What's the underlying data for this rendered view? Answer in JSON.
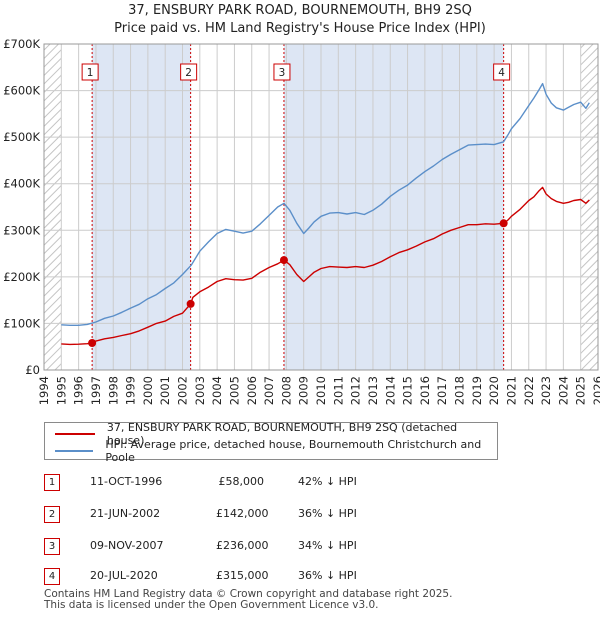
{
  "title_line1": "37, ENSBURY PARK ROAD, BOURNEMOUTH, BH9 2SQ",
  "title_line2": "Price paid vs. HM Land Registry's House Price Index (HPI)",
  "legend": {
    "property_label": "37, ENSBURY PARK ROAD, BOURNEMOUTH, BH9 2SQ (detached house)",
    "hpi_label": "HPI: Average price, detached house, Bournemouth Christchurch and Poole"
  },
  "sales": [
    {
      "num": "1",
      "date": "11-OCT-1996",
      "price": "£58,000",
      "hpi": "42% ↓ HPI"
    },
    {
      "num": "2",
      "date": "21-JUN-2002",
      "price": "£142,000",
      "hpi": "36% ↓ HPI"
    },
    {
      "num": "3",
      "date": "09-NOV-2007",
      "price": "£236,000",
      "hpi": "34% ↓ HPI"
    },
    {
      "num": "4",
      "date": "20-JUL-2020",
      "price": "£315,000",
      "hpi": "36% ↓ HPI"
    }
  ],
  "footer_line1": "Contains HM Land Registry data © Crown copyright and database right 2025.",
  "footer_line2": "This data is licensed under the Open Government Licence v3.0.",
  "chart_data": {
    "type": "line",
    "title": "37, ENSBURY PARK ROAD, BOURNEMOUTH, BH9 2SQ — Price paid vs. HM Land Registry's House Price Index (HPI)",
    "xlabel": "",
    "ylabel": "",
    "xlim": [
      1994,
      2026
    ],
    "ylim": [
      0,
      700000
    ],
    "x_ticks": [
      1994,
      1995,
      1996,
      1997,
      1998,
      1999,
      2000,
      2001,
      2002,
      2003,
      2004,
      2005,
      2006,
      2007,
      2008,
      2009,
      2010,
      2011,
      2012,
      2013,
      2014,
      2015,
      2016,
      2017,
      2018,
      2019,
      2020,
      2021,
      2022,
      2023,
      2024,
      2025,
      2026
    ],
    "y_ticks": [
      0,
      100000,
      200000,
      300000,
      400000,
      500000,
      600000,
      700000
    ],
    "y_tick_labels": [
      "£0",
      "£100K",
      "£200K",
      "£300K",
      "£400K",
      "£500K",
      "£600K",
      "£700K"
    ],
    "grid": true,
    "legend_position": "below",
    "colors": {
      "property": "#cc0000",
      "hpi": "#5b8fc9",
      "band": "#dde6f4",
      "vline": "#cc0000",
      "grid": "#cccccc"
    },
    "shaded_periods": [
      [
        1994,
        1995
      ],
      [
        1996.78,
        2002.47
      ],
      [
        2007.86,
        2020.55
      ],
      [
        2025.0,
        2026
      ]
    ],
    "hatched_periods": [
      [
        1994,
        1995
      ],
      [
        2025.0,
        2026
      ]
    ],
    "series": [
      {
        "name": "37, ENSBURY PARK ROAD, BOURNEMOUTH, BH9 2SQ (detached house)",
        "x": [
          1995.0,
          1995.5,
          1996.0,
          1996.5,
          1996.78,
          1997.0,
          1997.5,
          1998.0,
          1998.5,
          1999.0,
          1999.5,
          2000.0,
          2000.5,
          2001.0,
          2001.5,
          2002.0,
          2002.47,
          2002.6,
          2003.0,
          2003.5,
          2004.0,
          2004.5,
          2005.0,
          2005.5,
          2006.0,
          2006.5,
          2007.0,
          2007.5,
          2007.86,
          2008.2,
          2008.6,
          2009.0,
          2009.3,
          2009.6,
          2010.0,
          2010.5,
          2011.0,
          2011.5,
          2012.0,
          2012.5,
          2013.0,
          2013.5,
          2014.0,
          2014.5,
          2015.0,
          2015.5,
          2016.0,
          2016.5,
          2017.0,
          2017.5,
          2018.0,
          2018.5,
          2019.0,
          2019.5,
          2020.0,
          2020.55,
          2020.8,
          2021.0,
          2021.5,
          2022.0,
          2022.3,
          2022.6,
          2022.8,
          2023.0,
          2023.3,
          2023.6,
          2024.0,
          2024.3,
          2024.6,
          2025.0,
          2025.3,
          2025.5
        ],
        "values": [
          56000,
          55000,
          55500,
          56500,
          58000,
          62000,
          67000,
          70000,
          74000,
          78000,
          84000,
          92000,
          100000,
          105000,
          115000,
          122000,
          142000,
          156000,
          168000,
          178000,
          190000,
          196000,
          194000,
          193000,
          197000,
          210000,
          220000,
          228000,
          236000,
          226000,
          205000,
          190000,
          200000,
          210000,
          218000,
          222000,
          221000,
          220000,
          222000,
          220000,
          225000,
          233000,
          243000,
          252000,
          258000,
          266000,
          275000,
          282000,
          292000,
          300000,
          306000,
          312000,
          312000,
          314000,
          313000,
          315000,
          322000,
          330000,
          345000,
          364000,
          372000,
          385000,
          392000,
          378000,
          368000,
          362000,
          358000,
          360000,
          364000,
          366000,
          358000,
          365000
        ]
      },
      {
        "name": "HPI: Average price, detached house, Bournemouth Christchurch and Poole",
        "x": [
          1995.0,
          1995.5,
          1996.0,
          1996.5,
          1997.0,
          1997.5,
          1998.0,
          1998.5,
          1999.0,
          1999.5,
          2000.0,
          2000.5,
          2001.0,
          2001.5,
          2002.0,
          2002.5,
          2003.0,
          2003.5,
          2004.0,
          2004.5,
          2005.0,
          2005.5,
          2006.0,
          2006.5,
          2007.0,
          2007.5,
          2007.86,
          2008.2,
          2008.6,
          2009.0,
          2009.3,
          2009.6,
          2010.0,
          2010.5,
          2011.0,
          2011.5,
          2012.0,
          2012.5,
          2013.0,
          2013.5,
          2014.0,
          2014.5,
          2015.0,
          2015.5,
          2016.0,
          2016.5,
          2017.0,
          2017.5,
          2018.0,
          2018.5,
          2019.0,
          2019.5,
          2020.0,
          2020.55,
          2020.8,
          2021.0,
          2021.5,
          2022.0,
          2022.3,
          2022.6,
          2022.8,
          2023.0,
          2023.3,
          2023.6,
          2024.0,
          2024.3,
          2024.6,
          2025.0,
          2025.3,
          2025.5
        ],
        "values": [
          97000,
          96000,
          96000,
          98000,
          103000,
          111000,
          116000,
          124000,
          133000,
          141000,
          153000,
          162000,
          175000,
          187000,
          205000,
          225000,
          255000,
          275000,
          293000,
          302000,
          298000,
          294000,
          298000,
          314000,
          332000,
          350000,
          358000,
          343000,
          315000,
          293000,
          305000,
          318000,
          330000,
          337000,
          338000,
          335000,
          338000,
          334000,
          343000,
          356000,
          373000,
          386000,
          397000,
          412000,
          426000,
          438000,
          452000,
          463000,
          473000,
          483000,
          484000,
          485000,
          484000,
          490000,
          505000,
          518000,
          540000,
          568000,
          584000,
          602000,
          615000,
          592000,
          573000,
          563000,
          558000,
          564000,
          570000,
          575000,
          562000,
          574000
        ]
      }
    ],
    "sale_markers": [
      {
        "label": "1",
        "x": 1996.78,
        "value": 58000
      },
      {
        "label": "2",
        "x": 2002.47,
        "value": 142000
      },
      {
        "label": "3",
        "x": 2007.86,
        "value": 236000
      },
      {
        "label": "4",
        "x": 2020.55,
        "value": 315000
      }
    ]
  }
}
